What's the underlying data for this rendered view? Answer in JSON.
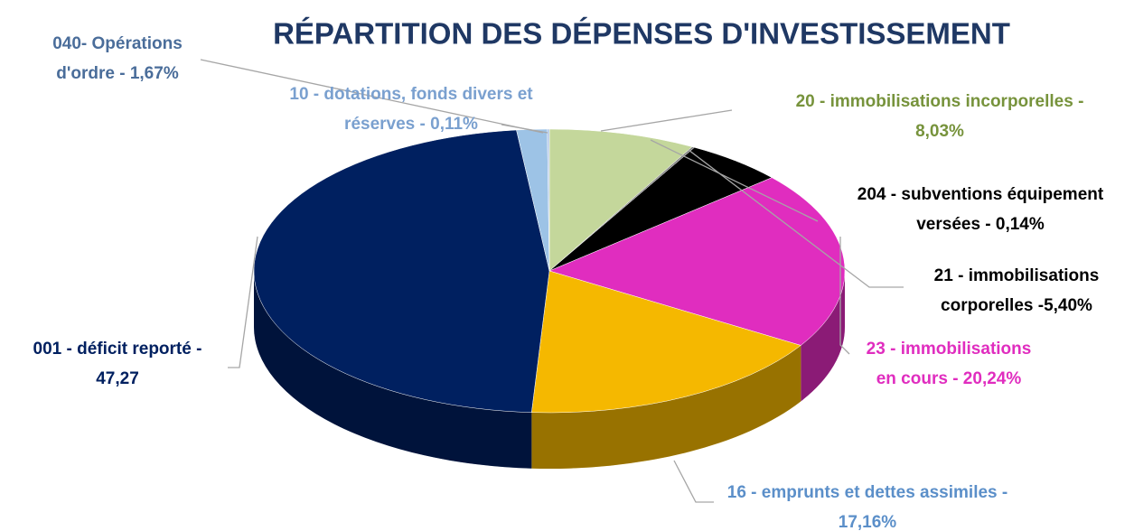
{
  "chart_data": {
    "type": "pie3d",
    "title": "RÉPARTITION DES DÉPENSES D'INVESTISSEMENT",
    "values": [
      8.03,
      0.14,
      5.4,
      20.24,
      17.16,
      47.27,
      1.67,
      0.11
    ],
    "value_labels": [
      [
        "20 - immobilisations incorporelles -",
        "8,03%"
      ],
      [
        "204 - subventions équipement",
        "versées - 0,14%"
      ],
      [
        "21 - immobilisations",
        "corporelles -5,40%"
      ],
      [
        "23 - immobilisations",
        "en cours - 20,24%"
      ],
      [
        "16 - emprunts et dettes assimiles -",
        "17,16%"
      ],
      [
        "001 - déficit reporté -",
        "47,27"
      ],
      [
        "040- Opérations",
        "d'ordre - 1,67%"
      ],
      [
        "10 - dotations, fonds divers et",
        "réserves  - 0,11%"
      ]
    ],
    "colors": [
      "#c4d79b",
      "#7f7f7f",
      "#000000",
      "#e02dbf",
      "#f5b800",
      "#002060",
      "#9dc3e6",
      "#b4c7e7"
    ],
    "label_colors": [
      "#77933c",
      "#000000",
      "#000000",
      "#e02dbf",
      "#5b8fc9",
      "#002060",
      "#4a6d9a",
      "#7aa0cf"
    ]
  }
}
